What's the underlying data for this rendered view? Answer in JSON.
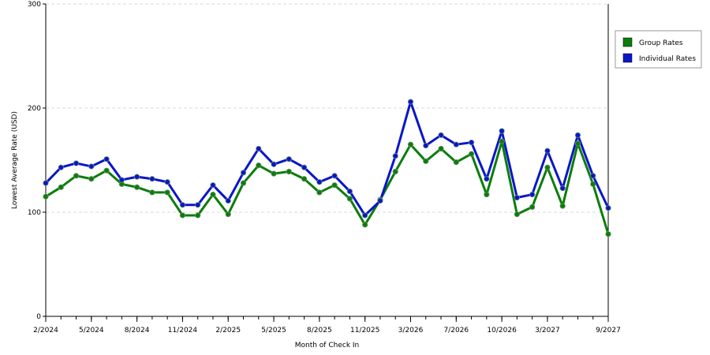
{
  "chart_data": {
    "type": "line",
    "title": "",
    "xlabel": "Month of Check In",
    "ylabel": "Lowest Average Rate (USD)",
    "ylim": [
      0,
      300
    ],
    "yticks": [
      0,
      100,
      200,
      300
    ],
    "grid": "horizontal dashed",
    "legend_position": "right",
    "x_count": 38,
    "x_tick_labels": [
      {
        "index": 0,
        "label": "2/2024"
      },
      {
        "index": 3,
        "label": "5/2024"
      },
      {
        "index": 6,
        "label": "8/2024"
      },
      {
        "index": 9,
        "label": "11/2024"
      },
      {
        "index": 12,
        "label": "2/2025"
      },
      {
        "index": 15,
        "label": "5/2025"
      },
      {
        "index": 18,
        "label": "8/2025"
      },
      {
        "index": 21,
        "label": "11/2025"
      },
      {
        "index": 24,
        "label": "3/2026"
      },
      {
        "index": 27,
        "label": "7/2026"
      },
      {
        "index": 30,
        "label": "10/2026"
      },
      {
        "index": 33,
        "label": "3/2027"
      },
      {
        "index": 37,
        "label": "9/2027"
      }
    ],
    "series": [
      {
        "name": "Group Rates",
        "color": "#0b7d0b",
        "values": [
          115,
          124,
          135,
          132,
          140,
          127,
          124,
          119,
          119,
          97,
          97,
          117,
          98,
          128,
          145,
          137,
          139,
          132,
          119,
          126,
          113,
          88,
          112,
          139,
          165,
          149,
          161,
          148,
          156,
          117,
          168,
          98,
          105,
          143,
          106,
          166,
          127,
          79
        ]
      },
      {
        "name": "Individual Rates",
        "color": "#0a16c8",
        "values": [
          128,
          143,
          147,
          144,
          151,
          131,
          134,
          132,
          129,
          107,
          107,
          126,
          111,
          138,
          161,
          146,
          151,
          143,
          129,
          135,
          120,
          97,
          111,
          154,
          206,
          164,
          174,
          165,
          167,
          132,
          178,
          114,
          117,
          159,
          123,
          174,
          135,
          104
        ]
      }
    ]
  }
}
